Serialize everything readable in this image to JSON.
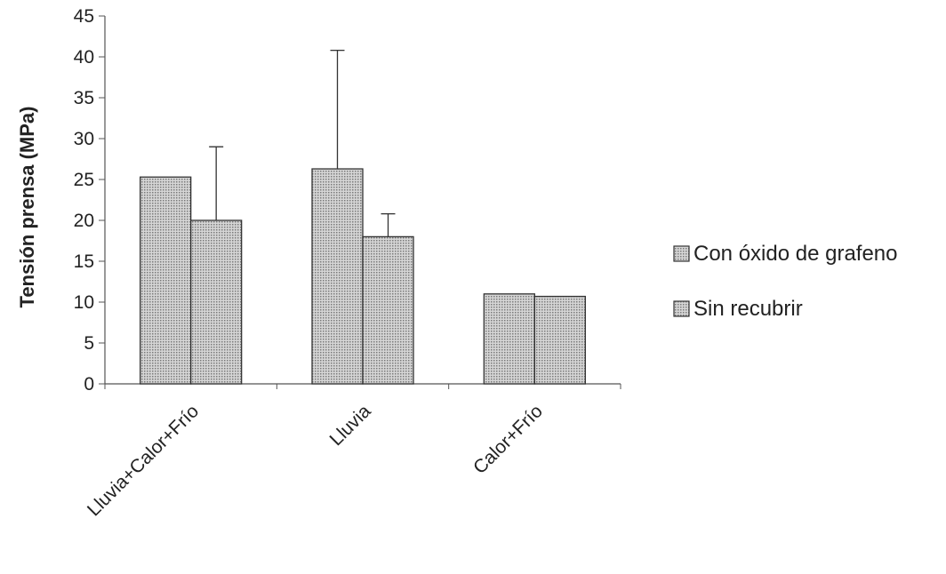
{
  "chart_data": {
    "type": "bar",
    "title": "",
    "xlabel": "",
    "ylabel": "Tensión prensa (MPa)",
    "ylim": [
      0,
      45
    ],
    "yticks": [
      0,
      5,
      10,
      15,
      20,
      25,
      30,
      35,
      40,
      45
    ],
    "categories": [
      "Lluvia+Calor+Frío",
      "Lluvia",
      "Calor+Frío"
    ],
    "series": [
      {
        "name": "Con óxido de grafeno",
        "values": [
          25.3,
          26.3,
          11.0
        ],
        "error_upper": [
          null,
          40.8,
          null
        ]
      },
      {
        "name": "Sin recubrir",
        "values": [
          20.0,
          18.0,
          10.7
        ],
        "error_upper": [
          29.0,
          20.8,
          null
        ]
      }
    ],
    "grid": false,
    "legend_position": "right",
    "colors": {
      "bar_fill": "#c8c8c8",
      "bar_stroke": "#333333",
      "axis": "#555555"
    }
  }
}
